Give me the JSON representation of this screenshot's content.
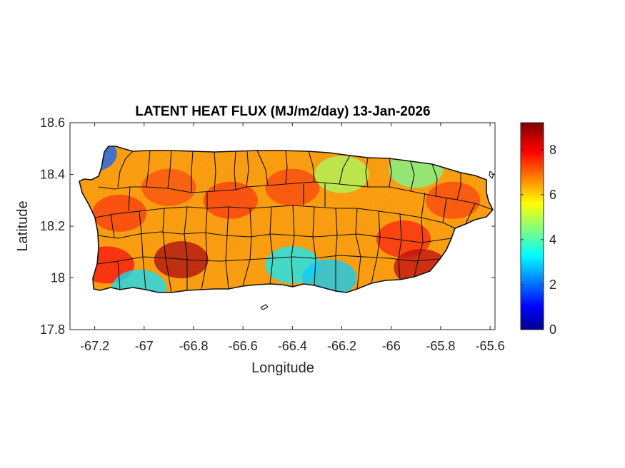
{
  "chart_data": {
    "type": "heatmap",
    "title": "LATENT HEAT FLUX (MJ/m2/day) 13-Jan-2026",
    "xlabel": "Longitude",
    "ylabel": "Latitude",
    "xlim": [
      -67.3,
      -65.58
    ],
    "ylim": [
      17.8,
      18.6
    ],
    "xticks": [
      -67.2,
      -67,
      -66.8,
      -66.6,
      -66.4,
      -66.2,
      -66,
      -65.8,
      -65.6
    ],
    "xtick_labels": [
      "-67.2",
      "-67",
      "-66.8",
      "-66.6",
      "-66.4",
      "-66.2",
      "-66",
      "-65.8",
      "-65.6"
    ],
    "yticks": [
      17.8,
      18,
      18.2,
      18.4,
      18.6
    ],
    "ytick_labels": [
      "17.8",
      "18",
      "18.2",
      "18.4",
      "18.6"
    ],
    "colorbar": {
      "colormap": "jet",
      "range": [
        0,
        9.2
      ],
      "ticks": [
        0,
        2,
        4,
        6,
        8
      ],
      "tick_labels": [
        "0",
        "2",
        "4",
        "6",
        "8"
      ]
    },
    "grid": false,
    "region": "Puerto Rico (municipality boundaries overlaid)",
    "zones": [
      {
        "lon": -66.85,
        "lat": 18.07,
        "value": 8.8
      },
      {
        "lon": -67.15,
        "lat": 18.05,
        "value": 8.0
      },
      {
        "lon": -67.1,
        "lat": 18.25,
        "value": 7.6
      },
      {
        "lon": -66.9,
        "lat": 18.35,
        "value": 7.4
      },
      {
        "lon": -66.65,
        "lat": 18.3,
        "value": 7.6
      },
      {
        "lon": -66.4,
        "lat": 18.35,
        "value": 7.5
      },
      {
        "lon": -66.4,
        "lat": 18.05,
        "value": 3.3
      },
      {
        "lon": -66.25,
        "lat": 18.0,
        "value": 3.0
      },
      {
        "lon": -66.2,
        "lat": 18.4,
        "value": 5.0
      },
      {
        "lon": -65.95,
        "lat": 18.15,
        "value": 7.8
      },
      {
        "lon": -65.88,
        "lat": 18.04,
        "value": 8.6
      },
      {
        "lon": -65.75,
        "lat": 18.3,
        "value": 7.5
      },
      {
        "lon": -67.22,
        "lat": 18.48,
        "value": 2.0
      },
      {
        "lon": -67.02,
        "lat": 17.96,
        "value": 3.2
      },
      {
        "lon": -65.9,
        "lat": 18.42,
        "value": 4.5
      }
    ]
  }
}
